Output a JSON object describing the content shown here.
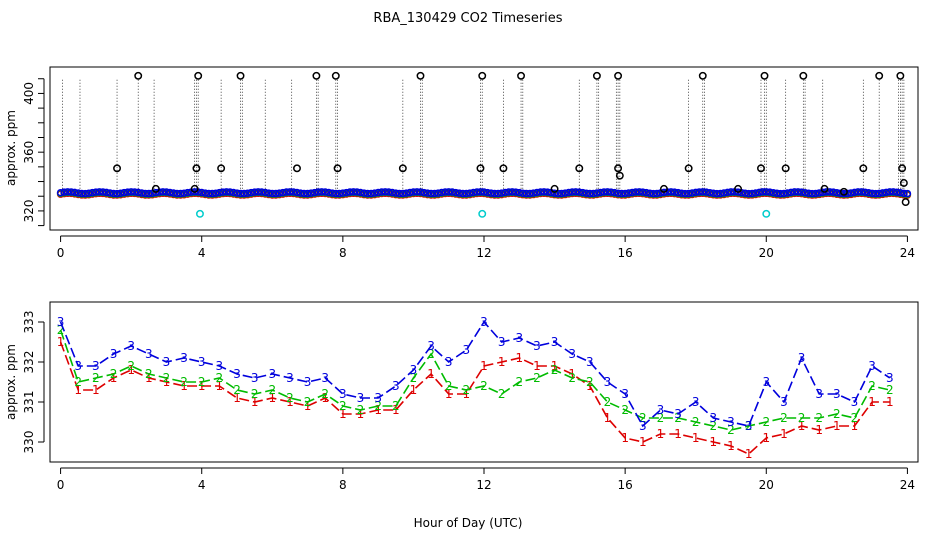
{
  "chart_data": [
    {
      "type": "scatter",
      "panel": "top",
      "title": "RBA_130429  CO2 Timeseries",
      "xlabel": "",
      "ylabel": "approx. ppm",
      "xlim": [
        -0.3,
        24.3
      ],
      "ylim": [
        307,
        418
      ],
      "xticks": [
        0,
        4,
        8,
        12,
        16,
        20,
        24
      ],
      "yticks": [
        320,
        360,
        400
      ],
      "baseline_mean": 332,
      "colors": {
        "line1": "#dd0000",
        "line2": "#00bb00",
        "line3": "#0000dd",
        "outlier": "#000000",
        "cyan": "#00cccc"
      },
      "outliers_black": [
        [
          2.2,
          412
        ],
        [
          3.9,
          412
        ],
        [
          5.1,
          412
        ],
        [
          7.25,
          412
        ],
        [
          7.8,
          412
        ],
        [
          10.2,
          412
        ],
        [
          11.95,
          412
        ],
        [
          13.05,
          412
        ],
        [
          15.2,
          412
        ],
        [
          15.8,
          412
        ],
        [
          18.2,
          412
        ],
        [
          19.95,
          412
        ],
        [
          21.05,
          412
        ],
        [
          23.2,
          412
        ],
        [
          23.8,
          412
        ],
        [
          1.6,
          349
        ],
        [
          3.85,
          349
        ],
        [
          4.55,
          349
        ],
        [
          6.7,
          349
        ],
        [
          7.85,
          349
        ],
        [
          9.7,
          349
        ],
        [
          11.9,
          349
        ],
        [
          12.55,
          349
        ],
        [
          14.7,
          349
        ],
        [
          15.8,
          349
        ],
        [
          15.85,
          344
        ],
        [
          17.8,
          349
        ],
        [
          19.85,
          349
        ],
        [
          20.55,
          349
        ],
        [
          22.75,
          349
        ],
        [
          23.85,
          349
        ],
        [
          23.9,
          339
        ],
        [
          2.7,
          335
        ],
        [
          3.8,
          335
        ],
        [
          14.0,
          335
        ],
        [
          17.1,
          335
        ],
        [
          19.2,
          335
        ],
        [
          21.65,
          335
        ],
        [
          22.2,
          333
        ],
        [
          23.95,
          326
        ]
      ],
      "outliers_cyan": [
        [
          3.95,
          318
        ],
        [
          11.95,
          318
        ],
        [
          20.0,
          318
        ]
      ],
      "spike_lines": [
        0.05,
        0.55,
        1.6,
        2.2,
        2.65,
        3.8,
        3.85,
        3.9,
        4.55,
        5.1,
        5.15,
        5.8,
        6.55,
        7.25,
        7.3,
        7.8,
        7.85,
        9.7,
        10.2,
        10.25,
        11.9,
        11.95,
        12.55,
        13.05,
        13.1,
        14.7,
        15.2,
        15.25,
        15.75,
        15.8,
        15.85,
        17.8,
        18.2,
        18.25,
        19.85,
        19.95,
        20.0,
        20.55,
        21.05,
        21.1,
        21.6,
        22.75,
        23.2,
        23.75,
        23.8,
        23.85,
        23.9
      ]
    },
    {
      "type": "line",
      "panel": "bottom",
      "title": "",
      "xlabel": "Hour of Day (UTC)",
      "ylabel": "approx. ppm",
      "xlim": [
        -0.3,
        24.3
      ],
      "ylim": [
        329.5,
        333.5
      ],
      "xticks": [
        0,
        4,
        8,
        12,
        16,
        20,
        24
      ],
      "yticks": [
        330,
        331,
        332,
        333
      ],
      "series": [
        {
          "name": "3",
          "color": "#0000dd",
          "x": [
            0.0,
            0.5,
            1.0,
            1.5,
            2.0,
            2.5,
            3.0,
            3.5,
            4.0,
            4.5,
            5.0,
            5.5,
            6.0,
            6.5,
            7.0,
            7.5,
            8.0,
            8.5,
            9.0,
            9.5,
            10.0,
            10.5,
            11.0,
            11.5,
            12.0,
            12.5,
            13.0,
            13.5,
            14.0,
            14.5,
            15.0,
            15.5,
            16.0,
            16.5,
            17.0,
            17.5,
            18.0,
            18.5,
            19.0,
            19.5,
            20.0,
            20.5,
            21.0,
            21.5,
            22.0,
            22.5,
            23.0,
            23.5
          ],
          "values": [
            333.0,
            331.9,
            331.9,
            332.2,
            332.4,
            332.2,
            332.0,
            332.1,
            332.0,
            331.9,
            331.7,
            331.6,
            331.7,
            331.6,
            331.5,
            331.6,
            331.2,
            331.1,
            331.1,
            331.4,
            331.8,
            332.4,
            332.0,
            332.3,
            333.0,
            332.5,
            332.6,
            332.4,
            332.5,
            332.2,
            332.0,
            331.5,
            331.2,
            330.4,
            330.8,
            330.7,
            331.0,
            330.6,
            330.5,
            330.4,
            331.5,
            331.0,
            332.1,
            331.2,
            331.2,
            331.0,
            331.9,
            331.6
          ]
        },
        {
          "name": "2",
          "color": "#00bb00",
          "x": [
            0.0,
            0.5,
            1.0,
            1.5,
            2.0,
            2.5,
            3.0,
            3.5,
            4.0,
            4.5,
            5.0,
            5.5,
            6.0,
            6.5,
            7.0,
            7.5,
            8.0,
            8.5,
            9.0,
            9.5,
            10.0,
            10.5,
            11.0,
            11.5,
            12.0,
            12.5,
            13.0,
            13.5,
            14.0,
            14.5,
            15.0,
            15.5,
            16.0,
            16.5,
            17.0,
            17.5,
            18.0,
            18.5,
            19.0,
            19.5,
            20.0,
            20.5,
            21.0,
            21.5,
            22.0,
            22.5,
            23.0,
            23.5
          ],
          "values": [
            332.8,
            331.5,
            331.6,
            331.7,
            331.9,
            331.7,
            331.6,
            331.5,
            331.5,
            331.6,
            331.3,
            331.2,
            331.3,
            331.1,
            331.0,
            331.2,
            330.9,
            330.8,
            330.9,
            330.9,
            331.6,
            332.2,
            331.4,
            331.3,
            331.4,
            331.2,
            331.5,
            331.6,
            331.8,
            331.6,
            331.5,
            331.0,
            330.8,
            330.6,
            330.6,
            330.6,
            330.5,
            330.4,
            330.3,
            330.4,
            330.5,
            330.6,
            330.6,
            330.6,
            330.7,
            330.6,
            331.4,
            331.3
          ]
        },
        {
          "name": "1",
          "color": "#dd0000",
          "x": [
            0.0,
            0.5,
            1.0,
            1.5,
            2.0,
            2.5,
            3.0,
            3.5,
            4.0,
            4.5,
            5.0,
            5.5,
            6.0,
            6.5,
            7.0,
            7.5,
            8.0,
            8.5,
            9.0,
            9.5,
            10.0,
            10.5,
            11.0,
            11.5,
            12.0,
            12.5,
            13.0,
            13.5,
            14.0,
            14.5,
            15.0,
            15.5,
            16.0,
            16.5,
            17.0,
            17.5,
            18.0,
            18.5,
            19.0,
            19.5,
            20.0,
            20.5,
            21.0,
            21.5,
            22.0,
            22.5,
            23.0,
            23.5
          ],
          "values": [
            332.5,
            331.3,
            331.3,
            331.6,
            331.8,
            331.6,
            331.5,
            331.4,
            331.4,
            331.4,
            331.1,
            331.0,
            331.1,
            331.0,
            330.9,
            331.1,
            330.7,
            330.7,
            330.8,
            330.8,
            331.3,
            331.7,
            331.2,
            331.2,
            331.9,
            332.0,
            332.1,
            331.9,
            331.9,
            331.7,
            331.4,
            330.6,
            330.1,
            330.0,
            330.2,
            330.2,
            330.1,
            330.0,
            329.9,
            329.7,
            330.1,
            330.2,
            330.4,
            330.3,
            330.4,
            330.4,
            331.0,
            331.0
          ]
        }
      ]
    }
  ]
}
